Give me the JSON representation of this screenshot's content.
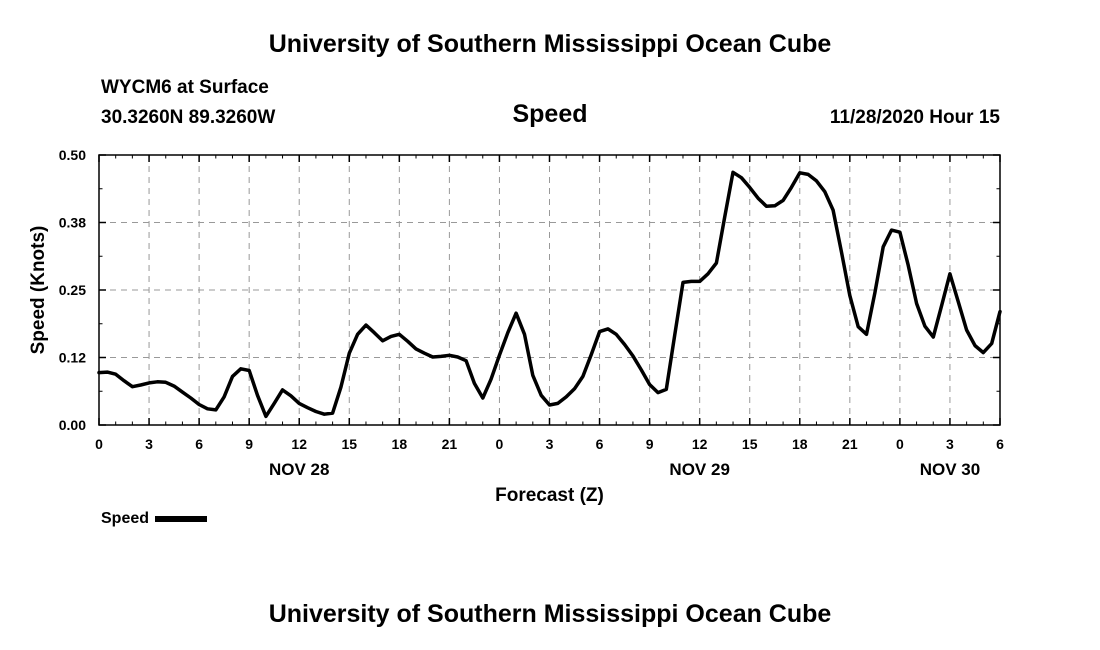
{
  "header": {
    "title": "University of Southern Mississippi Ocean Cube",
    "station": "WYCM6 at Surface",
    "coords": "30.3260N 89.3260W",
    "variable": "Speed",
    "datetime": "11/28/2020 Hour 15"
  },
  "footer": {
    "title": "University of Southern Mississippi Ocean Cube"
  },
  "legend": {
    "label": "Speed"
  },
  "chart_data": {
    "type": "line",
    "title": "Speed",
    "xlabel": "Forecast (Z)",
    "ylabel": "Speed (Knots)",
    "xlim": [
      0,
      54
    ],
    "ylim": [
      0,
      0.5
    ],
    "yticks": [
      "0.00",
      "0.12",
      "0.25",
      "0.38",
      "0.50"
    ],
    "xtick_labels": [
      "0",
      "3",
      "6",
      "9",
      "12",
      "15",
      "18",
      "21",
      "0",
      "3",
      "6",
      "9",
      "12",
      "15",
      "18",
      "21",
      "0",
      "3",
      "6"
    ],
    "date_labels": [
      {
        "label": "NOV 28",
        "x": 12
      },
      {
        "label": "NOV 29",
        "x": 36
      },
      {
        "label": "NOV 30",
        "x": 51
      }
    ],
    "grid": true,
    "legend_position": "bottom-left",
    "series": [
      {
        "name": "Speed",
        "color": "#000000",
        "x": [
          0,
          0.5,
          1,
          1.5,
          2,
          2.5,
          3,
          3.5,
          4,
          4.5,
          5,
          5.5,
          6,
          6.5,
          7,
          7.5,
          8,
          8.5,
          9,
          9.5,
          10,
          10.5,
          11,
          11.5,
          12,
          12.5,
          13,
          13.5,
          14,
          14.5,
          15,
          15.5,
          16,
          16.5,
          17,
          17.5,
          18,
          18.5,
          19,
          19.5,
          20,
          20.5,
          21,
          21.5,
          22,
          22.5,
          23,
          23.5,
          24,
          24.5,
          25,
          25.5,
          26,
          26.5,
          27,
          27.5,
          28,
          28.5,
          29,
          29.5,
          30,
          30.5,
          31,
          31.5,
          32,
          32.5,
          33,
          33.5,
          34,
          34.5,
          35,
          35.5,
          36,
          36.5,
          37,
          37.5,
          38,
          38.5,
          39,
          39.5,
          40,
          40.5,
          41,
          41.5,
          42,
          42.5,
          43,
          43.5,
          44,
          44.5,
          45,
          45.5,
          46,
          46.5,
          47,
          47.5,
          48,
          48.5,
          49,
          49.5,
          50,
          50.5,
          51,
          51.5,
          52,
          52.5,
          53,
          53.5,
          54
        ],
        "values": [
          0.097,
          0.098,
          0.094,
          0.082,
          0.071,
          0.074,
          0.078,
          0.08,
          0.079,
          0.072,
          0.061,
          0.05,
          0.038,
          0.03,
          0.028,
          0.052,
          0.09,
          0.104,
          0.101,
          0.055,
          0.016,
          0.04,
          0.065,
          0.054,
          0.04,
          0.032,
          0.025,
          0.02,
          0.022,
          0.07,
          0.133,
          0.168,
          0.185,
          0.171,
          0.156,
          0.164,
          0.168,
          0.155,
          0.141,
          0.133,
          0.126,
          0.127,
          0.129,
          0.126,
          0.119,
          0.077,
          0.05,
          0.085,
          0.129,
          0.171,
          0.207,
          0.168,
          0.092,
          0.055,
          0.037,
          0.04,
          0.052,
          0.067,
          0.09,
          0.13,
          0.173,
          0.178,
          0.168,
          0.149,
          0.128,
          0.102,
          0.075,
          0.06,
          0.066,
          0.165,
          0.264,
          0.266,
          0.266,
          0.28,
          0.3,
          0.385,
          0.468,
          0.458,
          0.44,
          0.42,
          0.405,
          0.406,
          0.416,
          0.44,
          0.467,
          0.464,
          0.452,
          0.432,
          0.398,
          0.32,
          0.24,
          0.182,
          0.168,
          0.245,
          0.33,
          0.361,
          0.357,
          0.296,
          0.225,
          0.183,
          0.163,
          0.221,
          0.28,
          0.228,
          0.176,
          0.147,
          0.134,
          0.151,
          0.21
        ]
      }
    ]
  }
}
